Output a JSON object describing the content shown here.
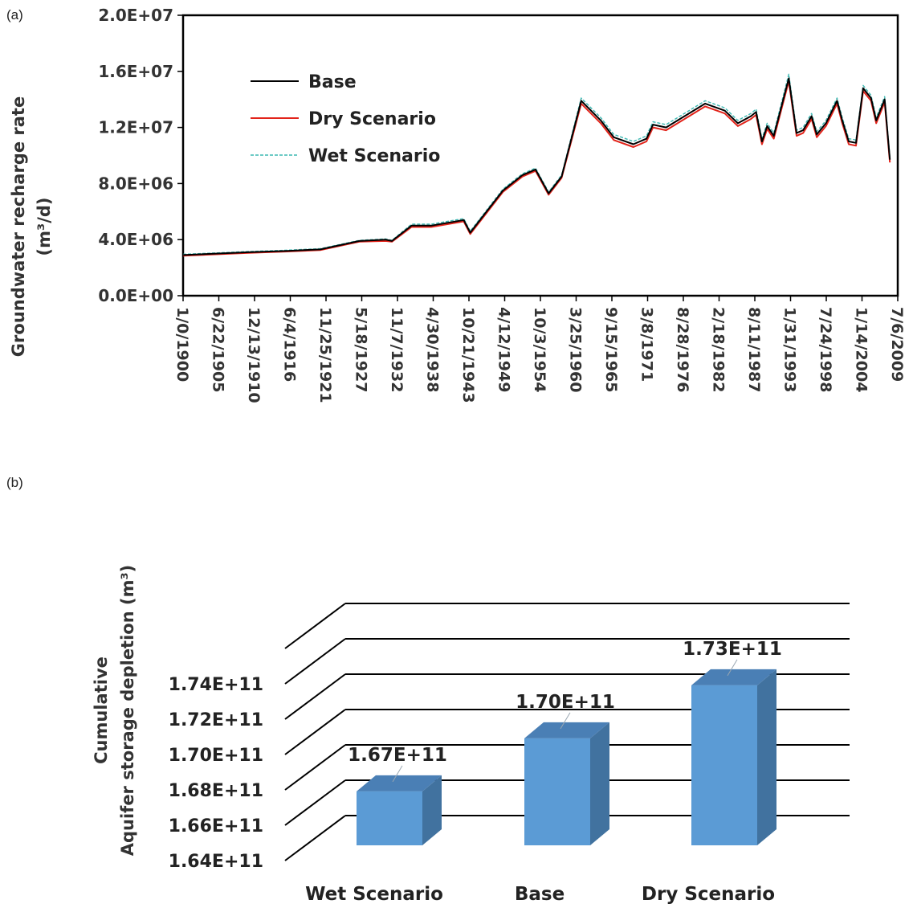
{
  "panels": {
    "a_label": "(a)",
    "b_label": "(b)"
  },
  "chart_data": [
    {
      "type": "line",
      "ylabel_line1": "Groundwater recharge rate",
      "ylabel_line2": "(m³/d)",
      "ylim": [
        0,
        20000000
      ],
      "y_ticks": [
        "0.0E+00",
        "4.0E+06",
        "8.0E+06",
        "1.2E+07",
        "1.6E+07",
        "2.0E+07"
      ],
      "x_ticks": [
        "1/0/1900",
        "6/22/1905",
        "12/13/1910",
        "6/4/1916",
        "11/25/1921",
        "5/18/1927",
        "11/7/1932",
        "4/30/1938",
        "10/21/1943",
        "4/12/1949",
        "10/3/1954",
        "3/25/1960",
        "9/15/1965",
        "3/8/1971",
        "8/28/1976",
        "2/18/1982",
        "8/11/1987",
        "1/31/1993",
        "7/24/1998",
        "1/14/2004",
        "7/6/2009"
      ],
      "xlim": [
        1900,
        2009.5
      ],
      "legend_position": "upper-left",
      "grid": false,
      "series": [
        {
          "name": "Base",
          "color": "#000000",
          "style": "solid",
          "x": [
            1900,
            1905,
            1910,
            1916,
            1921,
            1927,
            1931,
            1932,
            1935,
            1938,
            1943,
            1944,
            1949,
            1952,
            1954,
            1956,
            1958,
            1961,
            1964,
            1966,
            1969,
            1971,
            1972,
            1974,
            1980,
            1983,
            1985,
            1987,
            1987.8,
            1988.7,
            1989.5,
            1990.5,
            1992.8,
            1994,
            1995,
            1996.3,
            1997.1,
            1998.5,
            2000.2,
            2001,
            2002,
            2003.1,
            2004.2,
            2005.4,
            2006.2,
            2007.5,
            2008.3
          ],
          "y": [
            2900000,
            3000000,
            3100000,
            3200000,
            3300000,
            3900000,
            4000000,
            3900000,
            5000000,
            5000000,
            5400000,
            4500000,
            7500000,
            8600000,
            9000000,
            7300000,
            8500000,
            13900000,
            12500000,
            11300000,
            10800000,
            11200000,
            12200000,
            12000000,
            13700000,
            13200000,
            12300000,
            12800000,
            13100000,
            11000000,
            12100000,
            11400000,
            15500000,
            11600000,
            11800000,
            12800000,
            11500000,
            12300000,
            13900000,
            12500000,
            11000000,
            10900000,
            14800000,
            14100000,
            12500000,
            14000000,
            9700000
          ]
        },
        {
          "name": "Dry Scenario",
          "color": "#e2231a",
          "style": "solid",
          "x": [
            1900,
            1905,
            1910,
            1916,
            1921,
            1927,
            1931,
            1932,
            1935,
            1938,
            1943,
            1944,
            1949,
            1952,
            1954,
            1956,
            1958,
            1961,
            1964,
            1966,
            1969,
            1971,
            1972,
            1974,
            1980,
            1983,
            1985,
            1987,
            1987.8,
            1988.7,
            1989.5,
            1990.5,
            1992.8,
            1994,
            1995,
            1996.3,
            1997.1,
            1998.5,
            2000.2,
            2001,
            2002,
            2003.1,
            2004.2,
            2005.4,
            2006.2,
            2007.5,
            2008.3
          ],
          "y": [
            2850000,
            2950000,
            3050000,
            3150000,
            3250000,
            3850000,
            3900000,
            3850000,
            4900000,
            4900000,
            5300000,
            4400000,
            7400000,
            8500000,
            8900000,
            7200000,
            8400000,
            13700000,
            12300000,
            11100000,
            10600000,
            11000000,
            12000000,
            11800000,
            13500000,
            13000000,
            12100000,
            12600000,
            12900000,
            10800000,
            11900000,
            11200000,
            15300000,
            11400000,
            11600000,
            12600000,
            11300000,
            12100000,
            13700000,
            12300000,
            10800000,
            10700000,
            14600000,
            13900000,
            12300000,
            13800000,
            9500000
          ]
        },
        {
          "name": "Wet Scenario",
          "color": "#3cb8b2",
          "style": "dashed",
          "x": [
            1900,
            1905,
            1910,
            1916,
            1921,
            1927,
            1931,
            1932,
            1935,
            1938,
            1943,
            1944,
            1949,
            1952,
            1954,
            1956,
            1958,
            1961,
            1964,
            1966,
            1969,
            1971,
            1972,
            1974,
            1980,
            1983,
            1985,
            1987,
            1987.8,
            1988.7,
            1989.5,
            1990.5,
            1992.8,
            1994,
            1995,
            1996.3,
            1997.1,
            1998.5,
            2000.2,
            2001,
            2002,
            2003.1,
            2004.2,
            2005.4,
            2006.2,
            2007.5,
            2008.3
          ],
          "y": [
            2950000,
            3050000,
            3150000,
            3250000,
            3350000,
            3950000,
            4050000,
            3950000,
            5100000,
            5100000,
            5500000,
            4600000,
            7600000,
            8700000,
            9100000,
            7400000,
            8600000,
            14100000,
            12700000,
            11500000,
            11000000,
            11400000,
            12400000,
            12200000,
            13900000,
            13400000,
            12500000,
            13000000,
            13300000,
            11200000,
            12300000,
            11600000,
            15800000,
            11800000,
            12000000,
            13000000,
            11700000,
            12500000,
            14100000,
            12700000,
            11200000,
            11100000,
            15000000,
            14300000,
            12700000,
            14200000,
            9900000
          ]
        }
      ]
    },
    {
      "type": "bar",
      "subtype": "3d-column",
      "ylabel_line1": "Cumulative",
      "ylabel_line2": "Aquifer storage depletion  (m³)",
      "ylim": [
        164000000000,
        176000000000
      ],
      "y_ticks": [
        "1.64E+11",
        "1.66E+11",
        "1.68E+11",
        "1.70E+11",
        "1.72E+11",
        "1.74E+11"
      ],
      "categories": [
        "Wet Scenario",
        "Base",
        "Dry Scenario"
      ],
      "values": [
        167000000000,
        170000000000,
        173000000000
      ],
      "data_labels": [
        "1.67E+11",
        "1.70E+11",
        "1.73E+11"
      ],
      "bar_color": "#5b9bd5"
    }
  ]
}
